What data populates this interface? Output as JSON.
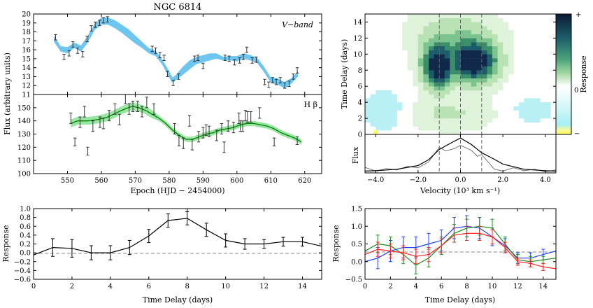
{
  "figure": {
    "title": "NGC 6814"
  },
  "chart_data": [
    {
      "panel": "v-band-light-curve",
      "type": "line",
      "annotation": "V−band",
      "ylabel": "Flux (arbitrary units)",
      "ylim": [
        11,
        20
      ],
      "xlim": [
        540,
        625
      ],
      "yticks": [
        "11",
        "12",
        "13",
        "14",
        "15",
        "16",
        "17",
        "18",
        "19",
        "20"
      ],
      "points": {
        "x": [
          546.5,
          549,
          550.5,
          551.6,
          553,
          554.5,
          555.8,
          557,
          558.2,
          559.5,
          560.6,
          561.8,
          575,
          576,
          577.3,
          578.5,
          579.5,
          581.2,
          582.8,
          587.5,
          588.5,
          590,
          596.5,
          597.7,
          599.3,
          600.8,
          601.9,
          602.9,
          604.5,
          605.7,
          608.2,
          609.4,
          610.5,
          611.6,
          612.8,
          614.1,
          615.4,
          616.6,
          617.8
        ],
        "y": [
          17.4,
          15.2,
          15.6,
          16.6,
          15.9,
          15.5,
          17.2,
          18.4,
          18.8,
          19.0,
          19.3,
          19.4,
          16.1,
          15.9,
          15.4,
          15.1,
          13.3,
          12.3,
          13.0,
          15.0,
          15.1,
          14.2,
          15.1,
          15.0,
          14.6,
          14.8,
          15.2,
          16.0,
          14.8,
          14.9,
          12.4,
          12.1,
          12.6,
          12.4,
          12.6,
          12.0,
          12.2,
          13.0,
          13.7
        ],
        "err": [
          0.3,
          0.3,
          0.3,
          0.3,
          0.3,
          0.3,
          0.3,
          0.3,
          0.3,
          0.3,
          0.3,
          0.3,
          0.3,
          0.3,
          0.3,
          0.3,
          0.3,
          0.3,
          0.3,
          0.3,
          0.3,
          0.3,
          0.3,
          0.3,
          0.3,
          0.3,
          0.3,
          0.3,
          0.3,
          0.3,
          0.3,
          0.3,
          0.3,
          0.3,
          0.3,
          0.3,
          0.3,
          0.3,
          0.3
        ]
      },
      "model_band": {
        "x": [
          546,
          548,
          550,
          552,
          554,
          556,
          558,
          560,
          562,
          564,
          566,
          568,
          570,
          572,
          574,
          576,
          578,
          580,
          581,
          582,
          584,
          586,
          588,
          590,
          592,
          594,
          596,
          598,
          600,
          602,
          604,
          606,
          608,
          610,
          612,
          614,
          616,
          618
        ],
        "lo": [
          16.9,
          15.8,
          15.6,
          16.2,
          15.8,
          16.8,
          18.2,
          18.8,
          18.8,
          18.4,
          17.9,
          17.3,
          16.7,
          16.2,
          15.6,
          15.3,
          14.3,
          12.9,
          12.3,
          12.6,
          13.2,
          13.8,
          14.4,
          14.6,
          14.8,
          15.0,
          14.8,
          14.8,
          14.7,
          15.0,
          14.8,
          14.5,
          13.5,
          12.3,
          12.1,
          11.7,
          12.2,
          13.0
        ],
        "hi": [
          17.6,
          16.4,
          16.3,
          16.8,
          16.5,
          17.6,
          18.9,
          19.6,
          19.6,
          19.3,
          18.8,
          18.3,
          17.6,
          16.9,
          16.2,
          15.9,
          14.9,
          13.6,
          12.9,
          13.2,
          14.1,
          14.8,
          15.2,
          15.4,
          15.6,
          15.6,
          15.2,
          15.3,
          15.3,
          15.6,
          15.4,
          15.1,
          14.1,
          12.9,
          12.8,
          12.4,
          12.8,
          13.6
        ]
      },
      "colors": {
        "points": "#333333",
        "band": "#6ec6f0"
      }
    },
    {
      "panel": "hbeta-light-curve",
      "type": "line",
      "annotation": "H β",
      "xlabel": "Epoch (HJD − 2454000)",
      "ylim": [
        100,
        160
      ],
      "xlim": [
        540,
        625
      ],
      "xticks": [
        "550",
        "560",
        "570",
        "580",
        "590",
        "600",
        "610",
        "620"
      ],
      "yticks": [
        "100",
        "110",
        "120",
        "130",
        "140",
        "150"
      ],
      "points": {
        "x": [
          551,
          552.2,
          553.7,
          555,
          556,
          557.5,
          559.6,
          560.6,
          562.3,
          564,
          565.3,
          567.1,
          568.2,
          569.3,
          570.7,
          572,
          573.4,
          575.5,
          581.6,
          582.9,
          584.2,
          586,
          586.8,
          588.7,
          590,
          590.9,
          591.8,
          594,
          595.5,
          596.2,
          597.4,
          599,
          600.6,
          601,
          601.7,
          602.5,
          603.1,
          604.1,
          606.7,
          611,
          617.8
        ],
        "y": [
          142,
          124,
          139,
          147,
          117,
          136,
          139,
          138,
          144,
          149,
          141,
          157,
          149,
          151,
          151,
          147,
          154,
          149,
          134,
          125,
          123,
          140,
          122,
          128,
          131,
          133,
          132,
          129,
          134,
          120,
          136,
          135,
          142,
          136,
          136,
          144,
          143,
          143,
          146,
          124,
          125
        ],
        "err": [
          4,
          3,
          4,
          4,
          3,
          4,
          4,
          4,
          4,
          4,
          4,
          4,
          4,
          4,
          4,
          4,
          4,
          4,
          4,
          4,
          4,
          4,
          4,
          4,
          4,
          4,
          4,
          4,
          4,
          4,
          4,
          4,
          4,
          4,
          4,
          4,
          4,
          4,
          4,
          3,
          3
        ]
      },
      "model_band": {
        "x": [
          551,
          553,
          556,
          559,
          562,
          566,
          569,
          571,
          573,
          575,
          577,
          579,
          581,
          583,
          585,
          587,
          589,
          591,
          593,
          595,
          597,
          599,
          601,
          603,
          605,
          607,
          609,
          611,
          613,
          615,
          617,
          619
        ],
        "mid": [
          138,
          140,
          140,
          141,
          143,
          148,
          151,
          150,
          148,
          145,
          142,
          138,
          133,
          129,
          126,
          126,
          128,
          130,
          131,
          133,
          134,
          135,
          137,
          138,
          138,
          137,
          136,
          134,
          131,
          129,
          127,
          124
        ],
        "half": [
          3,
          3,
          3,
          3,
          3,
          3,
          3,
          3,
          3,
          3,
          2,
          2,
          2,
          2,
          2,
          2,
          2,
          2,
          2,
          2,
          2,
          2,
          2,
          2,
          2,
          2,
          2,
          2,
          2,
          2,
          2,
          2
        ]
      },
      "colors": {
        "points": "#333333",
        "line": "#008000",
        "band": "#7ee08a"
      }
    },
    {
      "panel": "velocity-delay-map",
      "type": "heatmap",
      "ylabel": "Time Delay (days)",
      "xlim": [
        -4.5,
        4.5
      ],
      "ylim": [
        0,
        15
      ],
      "yticks": [
        "0",
        "2",
        "4",
        "6",
        "8",
        "10",
        "12",
        "14"
      ],
      "dashed_velocities": [
        -1.0,
        0.0,
        1.0
      ],
      "colorbar": {
        "label": "Response",
        "top": "+",
        "mid": "0",
        "bottom": "−"
      },
      "colors": {
        "strong": "#10284a",
        "mid": "#3a8f6a",
        "weak": "#b9e2b5",
        "negative": "#b8f0f5"
      }
    },
    {
      "panel": "flux-profiles",
      "type": "line",
      "ylabel": "Flux",
      "xlabel": "Velocity (10³ km s⁻¹)",
      "xlim": [
        -4.5,
        4.5
      ],
      "xticks": [
        "−4.0",
        "−2.0",
        "0.0",
        "2.0",
        "4.0"
      ],
      "series": [
        {
          "x": [
            -4.5,
            -4.0,
            -3.0,
            -2.0,
            -1.5,
            -1.0,
            -0.5,
            0.0,
            0.5,
            1.0,
            1.5,
            2.0,
            3.0,
            4.0,
            4.5
          ],
          "y": [
            0.05,
            0.06,
            0.1,
            0.2,
            0.36,
            0.64,
            0.8,
            0.95,
            0.78,
            0.55,
            0.4,
            0.24,
            0.1,
            0.06,
            0.05
          ],
          "color": "#000000"
        },
        {
          "x": [
            -4.5,
            -4.0,
            -3.5,
            -3.0,
            -2.5,
            -2.0,
            -1.5,
            -1.0,
            -0.7,
            -0.3,
            0.0,
            0.5,
            0.8,
            1.0,
            1.3,
            1.6,
            2.0,
            2.5,
            3.0,
            3.5,
            4.0,
            4.5
          ],
          "y": [
            0.15,
            0.05,
            0.12,
            0.08,
            0.18,
            0.14,
            0.3,
            0.7,
            0.6,
            0.66,
            0.75,
            0.62,
            0.45,
            0.5,
            0.3,
            0.1,
            0.05,
            0.14,
            0.06,
            0.1,
            0.03,
            0.08
          ],
          "color": "#777777"
        }
      ]
    },
    {
      "panel": "transfer-function-integrated",
      "type": "line",
      "ylabel": "Response",
      "xlabel": "Time Delay (days)",
      "xlim": [
        0,
        15
      ],
      "ylim": [
        -0.6,
        1.0
      ],
      "xticks": [
        "0",
        "2",
        "4",
        "6",
        "8",
        "10",
        "12",
        "14"
      ],
      "yticks": [
        "−0.6",
        "−0.4",
        "−0.2",
        "0.0",
        "0.2",
        "0.4",
        "0.6",
        "0.8",
        "1.0"
      ],
      "series": [
        {
          "x": [
            0,
            1,
            2,
            3,
            4,
            5,
            6,
            7,
            8,
            9,
            10,
            11,
            12,
            13,
            14,
            15
          ],
          "y": [
            -0.05,
            0.12,
            0.1,
            0.0,
            0.0,
            0.12,
            0.38,
            0.73,
            0.78,
            0.52,
            0.28,
            0.2,
            0.2,
            0.25,
            0.25,
            0.15
          ],
          "err": [
            0,
            0.2,
            0.2,
            0.16,
            0.16,
            0.16,
            0.15,
            0.15,
            0.15,
            0.15,
            0.15,
            0.12,
            0.1,
            0.1,
            0.1,
            0
          ],
          "color": "#000000"
        }
      ]
    },
    {
      "panel": "transfer-function-bins",
      "type": "line",
      "ylabel": "Response",
      "xlabel": "Time Delay (days)",
      "xlim": [
        0,
        15
      ],
      "ylim": [
        -0.5,
        1.5
      ],
      "xticks": [
        "0",
        "2",
        "4",
        "6",
        "8",
        "10",
        "12",
        "14"
      ],
      "yticks": [
        "−0.5",
        "0.0",
        "0.5",
        "1.0",
        "1.5"
      ],
      "series": [
        {
          "x": [
            0,
            1,
            2,
            3,
            4,
            5,
            6,
            7,
            8,
            9,
            10,
            11,
            12,
            13,
            14,
            15
          ],
          "y": [
            0.0,
            0.1,
            0.3,
            0.4,
            0.4,
            0.5,
            0.6,
            0.95,
            1.0,
            0.95,
            0.7,
            0.45,
            0.1,
            0.1,
            0.2,
            0.3
          ],
          "err": [
            0,
            0.3,
            0.3,
            0.3,
            0.3,
            0.3,
            0.3,
            0.3,
            0.3,
            0.3,
            0.25,
            0.2,
            0.15,
            0.15,
            0.15,
            0
          ],
          "color": "#1f3fff"
        },
        {
          "x": [
            0,
            1,
            2,
            3,
            4,
            5,
            6,
            7,
            8,
            9,
            10,
            11,
            12,
            13,
            14,
            15
          ],
          "y": [
            0.3,
            0.5,
            0.45,
            0.2,
            -0.1,
            0.1,
            0.45,
            0.8,
            0.95,
            1.0,
            0.95,
            0.5,
            0.05,
            0.0,
            0.05,
            0.1
          ],
          "err": [
            0,
            0.25,
            0.25,
            0.25,
            0.25,
            0.25,
            0.25,
            0.25,
            0.25,
            0.25,
            0.25,
            0.2,
            0.15,
            0.15,
            0.1,
            0
          ],
          "color": "#1a8a1a"
        },
        {
          "x": [
            0,
            1,
            2,
            3,
            4,
            5,
            6,
            7,
            8,
            9,
            10,
            11,
            12,
            13,
            14,
            15
          ],
          "y": [
            0.2,
            0.35,
            0.3,
            0.25,
            0.15,
            0.2,
            0.45,
            0.75,
            0.8,
            0.8,
            0.7,
            0.4,
            0.0,
            -0.05,
            -0.15,
            -0.2
          ],
          "err": [
            0,
            0.2,
            0.2,
            0.2,
            0.2,
            0.2,
            0.2,
            0.2,
            0.2,
            0.2,
            0.2,
            0.15,
            0.1,
            0.1,
            0.1,
            0
          ],
          "color": "#ff2020"
        }
      ]
    }
  ]
}
